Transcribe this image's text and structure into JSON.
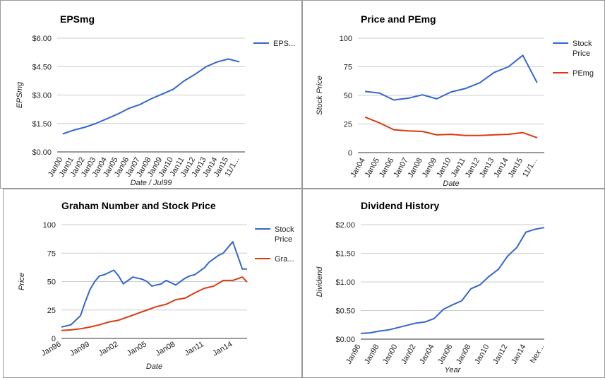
{
  "chart_data": [
    {
      "type": "line",
      "title": "EPSmg",
      "xlabel": "Date / Jul99",
      "ylabel": "EPSmg",
      "categories": [
        "Jan00",
        "Jan01",
        "Jan02",
        "Jan03",
        "Jan04",
        "Jan05",
        "Jan06",
        "Jan07",
        "Jan08",
        "Jan09",
        "Jan10",
        "Jan11",
        "Jan12",
        "Jan13",
        "Jan14",
        "Jan15",
        "11/1..."
      ],
      "ylim": [
        0,
        6
      ],
      "yticks": [
        "$0.00",
        "$1.50",
        "$3.00",
        "$4.50",
        "$6.00"
      ],
      "yticks_values": [
        0,
        1.5,
        3,
        4.5,
        6
      ],
      "series": [
        {
          "name": "EPS...",
          "color": "#3366cc",
          "values": [
            0.95,
            1.15,
            1.3,
            1.5,
            1.75,
            2.0,
            2.3,
            2.5,
            2.8,
            3.05,
            3.3,
            3.75,
            4.1,
            4.5,
            4.75,
            4.9,
            4.75
          ]
        }
      ],
      "legend": "right",
      "grid": true
    },
    {
      "type": "line",
      "title": "Price and PEmg",
      "xlabel": "Date",
      "ylabel": "Stock Price",
      "categories": [
        "Jan04",
        "Jan05",
        "Jan06",
        "Jan07",
        "Jan08",
        "Jan09",
        "Jan10",
        "Jan11",
        "Jan12",
        "Jan13",
        "Jan14",
        "Jan15",
        "11/1..."
      ],
      "ylim": [
        0,
        100
      ],
      "yticks": [
        "0",
        "25",
        "50",
        "75",
        "100"
      ],
      "yticks_values": [
        0,
        25,
        50,
        75,
        100
      ],
      "series": [
        {
          "name": "Stock Price",
          "color": "#3366cc",
          "values": [
            53.5,
            52,
            46,
            47.5,
            50.5,
            47,
            53,
            56,
            61,
            70,
            75,
            85,
            61
          ]
        },
        {
          "name": "PEmg",
          "color": "#dc3912",
          "values": [
            31,
            26,
            20,
            19,
            18.5,
            15.5,
            16,
            15,
            15,
            15.5,
            16,
            17.5,
            13
          ]
        }
      ],
      "legend": "right",
      "grid": true
    },
    {
      "type": "line",
      "title": "Graham Number and Stock Price",
      "xlabel": "Date",
      "ylabel": "Price",
      "categories": [
        "Jan96",
        "Jan99",
        "Jan02",
        "Jan05",
        "Jan08",
        "Jan11",
        "Jan14"
      ],
      "x_ticks_values": [
        0,
        3,
        6,
        9,
        12,
        15,
        18
      ],
      "xlim": [
        0,
        19.5
      ],
      "ylim": [
        0,
        100
      ],
      "yticks": [
        "0",
        "25",
        "50",
        "75",
        "100"
      ],
      "yticks_values": [
        0,
        25,
        50,
        75,
        100
      ],
      "series": [
        {
          "name": "Stock Price",
          "color": "#3366cc",
          "x": [
            0,
            0.5,
            1,
            1.5,
            2,
            2.5,
            3,
            3.5,
            4,
            4.5,
            5,
            5.5,
            6,
            6.5,
            7,
            7.5,
            8,
            8.5,
            9,
            9.5,
            10,
            10.5,
            11,
            11.5,
            12,
            12.5,
            13,
            13.5,
            14,
            14.5,
            15,
            15.5,
            16,
            16.5,
            17,
            17.5,
            18,
            18.5,
            19,
            19.5
          ],
          "values": [
            10,
            11,
            12,
            16,
            20,
            32,
            43,
            50,
            55,
            56,
            58,
            60,
            55,
            48,
            51,
            54,
            53,
            52,
            50,
            46,
            47,
            48,
            51,
            49,
            47,
            50,
            53,
            55,
            56,
            59,
            62,
            67,
            70,
            73,
            75,
            80,
            85,
            73,
            61,
            61
          ]
        },
        {
          "name": "Gra...",
          "color": "#dc3912",
          "x": [
            0,
            1,
            2,
            3,
            4,
            5,
            6,
            7,
            8,
            9,
            10,
            11,
            12,
            13,
            14,
            15,
            16,
            17,
            18,
            19,
            19.5
          ],
          "values": [
            7,
            7.5,
            8.5,
            10,
            12,
            14.5,
            16,
            19,
            22,
            25,
            28,
            30,
            34,
            35.5,
            40,
            44,
            46,
            51,
            51,
            54,
            49.5
          ]
        }
      ],
      "legend": "right",
      "grid": true
    },
    {
      "type": "line",
      "title": "Dividend History",
      "xlabel": "Year",
      "ylabel": "Dividend",
      "categories": [
        "Jan96",
        "Jan98",
        "Jan00",
        "Jan02",
        "Jan04",
        "Jan06",
        "Jan08",
        "Jan10",
        "Jan12",
        "Jan14",
        "Nex..."
      ],
      "x_ticks_values": [
        0,
        2,
        4,
        6,
        8,
        10,
        12,
        14,
        16,
        18,
        20
      ],
      "xlim": [
        0,
        20
      ],
      "ylim": [
        0,
        2
      ],
      "yticks": [
        "$0.00",
        "$0.50",
        "$1.00",
        "$1.50",
        "$2.00"
      ],
      "yticks_values": [
        0,
        0.5,
        1,
        1.5,
        2
      ],
      "series": [
        {
          "name": "Dividend",
          "color": "#3366cc",
          "x": [
            0,
            1,
            2,
            3,
            4,
            5,
            6,
            7,
            8,
            9,
            10,
            11,
            12,
            13,
            14,
            15,
            16,
            17,
            18,
            19,
            20
          ],
          "values": [
            0.1,
            0.11,
            0.14,
            0.16,
            0.2,
            0.24,
            0.28,
            0.3,
            0.36,
            0.52,
            0.6,
            0.67,
            0.88,
            0.95,
            1.1,
            1.22,
            1.45,
            1.6,
            1.87,
            1.92,
            1.95
          ]
        }
      ],
      "legend": "none",
      "grid": true
    }
  ]
}
